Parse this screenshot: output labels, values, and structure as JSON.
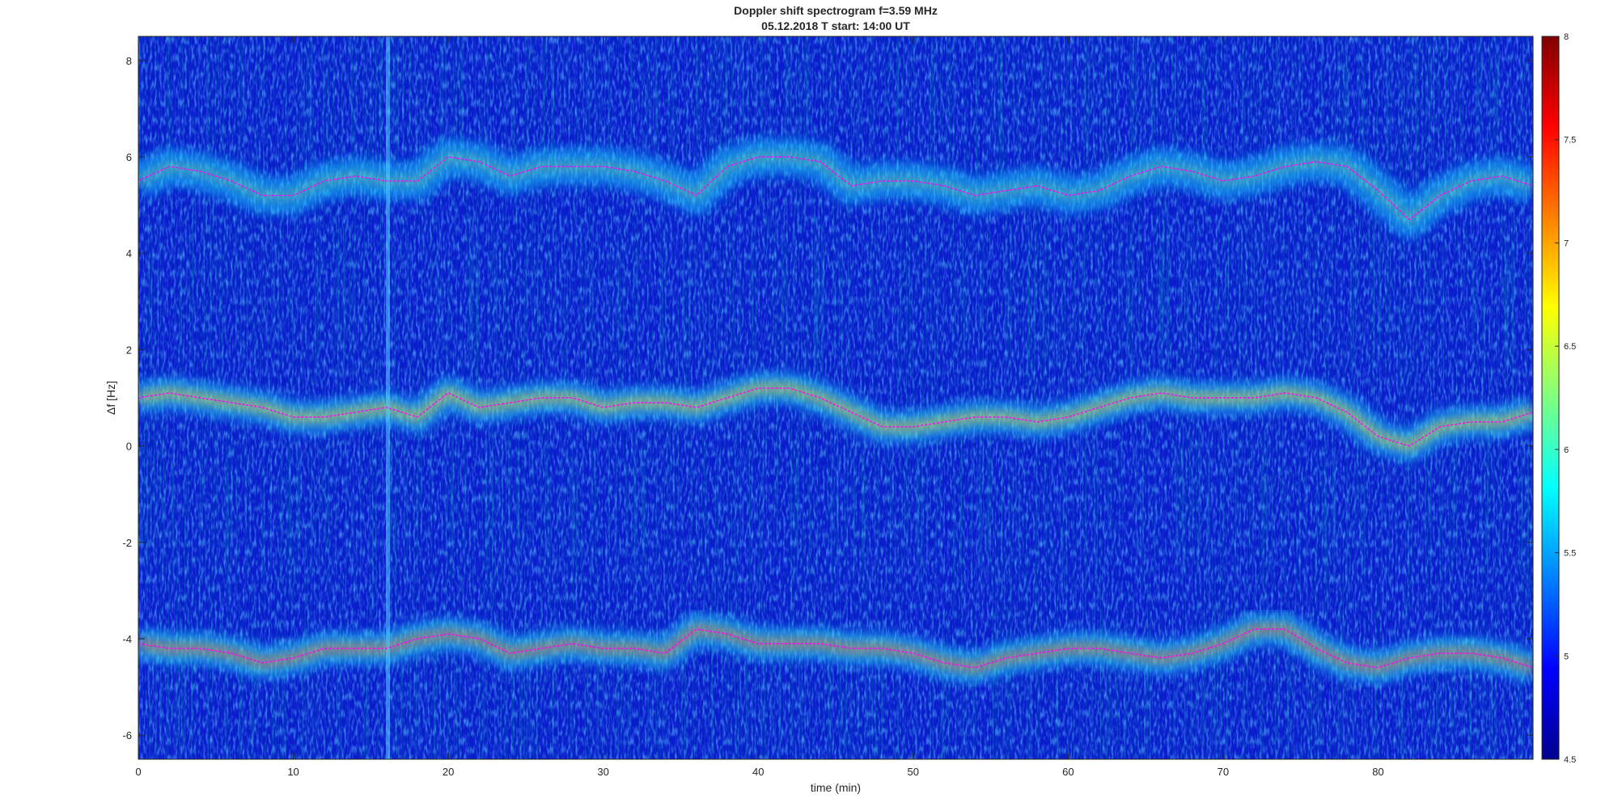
{
  "chart_data": {
    "type": "heatmap",
    "title": "Doppler shift spectrogram f=3.59 MHz",
    "subtitle": "05.12.2018   T start: 14:00 UT",
    "xlabel": "time (min)",
    "ylabel": "Δf [Hz]",
    "xlim": [
      0,
      90
    ],
    "ylim": [
      -6.5,
      8.5
    ],
    "xticks": [
      0,
      10,
      20,
      30,
      40,
      50,
      60,
      70,
      80
    ],
    "yticks": [
      8,
      6,
      4,
      2,
      0,
      -2,
      -4,
      -6
    ],
    "colormap": "jet",
    "colorbar": {
      "range": [
        4.5,
        8
      ],
      "ticks": [
        8,
        7.5,
        7,
        6.5,
        6,
        5.5,
        5,
        4.5
      ]
    },
    "grid": false,
    "series": [
      {
        "color": "#ff00ff",
        "x": [
          0,
          2,
          4,
          6,
          8,
          10,
          12,
          14,
          16,
          18,
          20,
          22,
          24,
          26,
          28,
          30,
          32,
          34,
          36,
          38,
          40,
          42,
          44,
          46,
          48,
          50,
          52,
          54,
          56,
          58,
          60,
          62,
          64,
          66,
          68,
          70,
          72,
          74,
          76,
          78,
          80,
          82,
          84,
          86,
          88,
          90
        ],
        "y": [
          5.5,
          5.8,
          5.7,
          5.5,
          5.2,
          5.2,
          5.5,
          5.6,
          5.5,
          5.5,
          6.0,
          5.9,
          5.6,
          5.8,
          5.8,
          5.8,
          5.7,
          5.5,
          5.2,
          5.8,
          6.0,
          6.0,
          5.9,
          5.4,
          5.5,
          5.5,
          5.4,
          5.2,
          5.3,
          5.4,
          5.2,
          5.3,
          5.6,
          5.8,
          5.7,
          5.5,
          5.6,
          5.8,
          5.9,
          5.8,
          5.3,
          4.7,
          5.2,
          5.5,
          5.6,
          5.4
        ]
      },
      {
        "color": "#ff00ff",
        "x": [
          0,
          2,
          4,
          6,
          8,
          10,
          12,
          14,
          16,
          18,
          20,
          22,
          24,
          26,
          28,
          30,
          32,
          34,
          36,
          38,
          40,
          42,
          44,
          46,
          48,
          50,
          52,
          54,
          56,
          58,
          60,
          62,
          64,
          66,
          68,
          70,
          72,
          74,
          76,
          78,
          80,
          82,
          84,
          86,
          88,
          90
        ],
        "y": [
          1.0,
          1.1,
          1.0,
          0.9,
          0.8,
          0.6,
          0.6,
          0.7,
          0.8,
          0.6,
          1.1,
          0.8,
          0.9,
          1.0,
          1.0,
          0.8,
          0.9,
          0.9,
          0.8,
          1.0,
          1.2,
          1.2,
          1.0,
          0.7,
          0.4,
          0.4,
          0.5,
          0.6,
          0.6,
          0.5,
          0.6,
          0.8,
          1.0,
          1.1,
          1.0,
          1.0,
          1.0,
          1.1,
          1.0,
          0.7,
          0.2,
          0.0,
          0.4,
          0.5,
          0.5,
          0.7
        ]
      },
      {
        "color": "#ff00ff",
        "x": [
          0,
          2,
          4,
          6,
          8,
          10,
          12,
          14,
          16,
          18,
          20,
          22,
          24,
          26,
          28,
          30,
          32,
          34,
          36,
          38,
          40,
          42,
          44,
          46,
          48,
          50,
          52,
          54,
          56,
          58,
          60,
          62,
          64,
          66,
          68,
          70,
          72,
          74,
          76,
          78,
          80,
          82,
          84,
          86,
          88,
          90
        ],
        "y": [
          -4.1,
          -4.2,
          -4.2,
          -4.3,
          -4.5,
          -4.4,
          -4.2,
          -4.2,
          -4.2,
          -4.0,
          -3.9,
          -4.0,
          -4.3,
          -4.2,
          -4.1,
          -4.2,
          -4.2,
          -4.3,
          -3.8,
          -3.9,
          -4.1,
          -4.1,
          -4.1,
          -4.2,
          -4.2,
          -4.3,
          -4.5,
          -4.6,
          -4.4,
          -4.3,
          -4.2,
          -4.2,
          -4.3,
          -4.4,
          -4.3,
          -4.1,
          -3.8,
          -3.8,
          -4.2,
          -4.5,
          -4.6,
          -4.4,
          -4.3,
          -4.3,
          -4.4,
          -4.6
        ]
      }
    ]
  }
}
